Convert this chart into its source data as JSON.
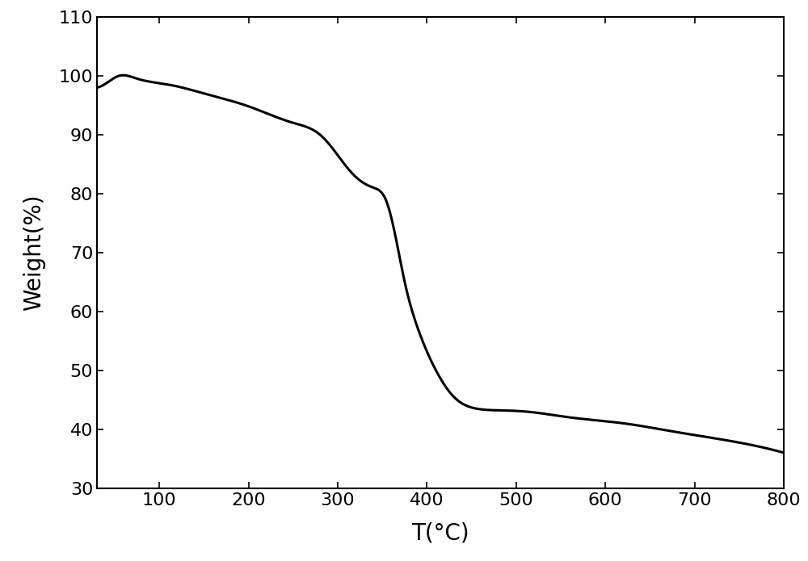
{
  "x_points": [
    30,
    45,
    55,
    75,
    110,
    150,
    200,
    250,
    280,
    295,
    310,
    325,
    340,
    355,
    365,
    375,
    390,
    410,
    430,
    455,
    480,
    510,
    560,
    620,
    680,
    740,
    800
  ],
  "y_points": [
    98.0,
    99.2,
    100.0,
    99.5,
    98.5,
    97.0,
    94.8,
    92.0,
    90.0,
    87.5,
    84.5,
    82.2,
    81.0,
    78.5,
    72.5,
    65.0,
    57.0,
    50.0,
    45.5,
    43.5,
    43.2,
    43.0,
    42.0,
    41.0,
    39.5,
    38.0,
    36.0
  ],
  "xlabel": "T(°C)",
  "ylabel": "Weight(%)",
  "xlim": [
    30,
    800
  ],
  "ylim": [
    30,
    110
  ],
  "xticks": [
    100,
    200,
    300,
    400,
    500,
    600,
    700,
    800
  ],
  "yticks": [
    30,
    40,
    50,
    60,
    70,
    80,
    90,
    100,
    110
  ],
  "line_color": "#000000",
  "line_width": 2.2,
  "bg_color": "#ffffff",
  "tick_fontsize": 16,
  "label_fontsize": 20,
  "figsize": [
    10.0,
    6.95
  ],
  "dpi": 100
}
